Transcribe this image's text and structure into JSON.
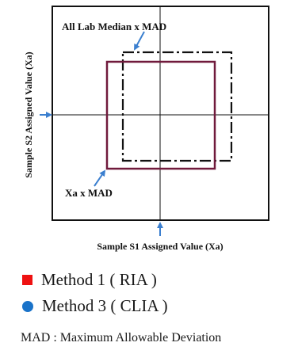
{
  "diagram": {
    "y_axis_label": "Sample S2 Assigned Value (Xa)",
    "x_axis_label": "Sample S1 Assigned Value (Xa)",
    "outer_label": "All Lab Median x MAD",
    "inner_label": "Xa x MAD",
    "colors": {
      "inner_box": "#701a3c",
      "dashed_box": "#111111",
      "arrow": "#3b7fcf",
      "frame": "#111111"
    }
  },
  "legend": [
    {
      "label": "Method 1 ( RIA )",
      "marker": "square",
      "color": "#ee1111"
    },
    {
      "label": "Method 3 ( CLIA )",
      "marker": "circle",
      "color": "#1a73c9"
    }
  ],
  "footnote": "MAD : Maximum Allowable Deviation"
}
